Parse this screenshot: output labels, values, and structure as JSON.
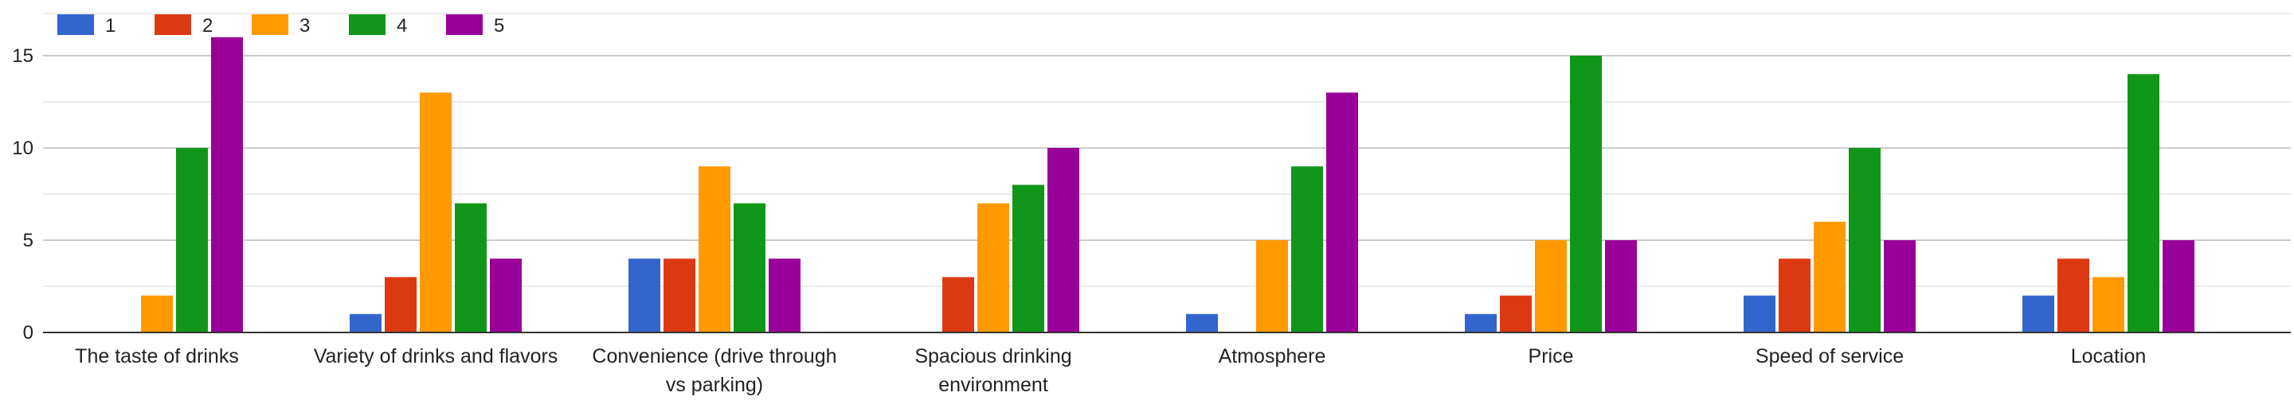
{
  "chart_data": {
    "type": "bar",
    "title": "",
    "xlabel": "",
    "ylabel": "",
    "ylim": [
      0,
      17
    ],
    "yticks": [
      0,
      5,
      10,
      15
    ],
    "grid": true,
    "legend_position": "top-left",
    "categories": [
      [
        "The taste of drinks"
      ],
      [
        "Variety of drinks and flavors"
      ],
      [
        "Convenience (drive through",
        "vs parking)"
      ],
      [
        "Spacious drinking",
        "environment"
      ],
      [
        "Atmosphere"
      ],
      [
        "Price"
      ],
      [
        "Speed of service"
      ],
      [
        "Location"
      ]
    ],
    "series": [
      {
        "name": "1",
        "color": "#3366cc",
        "values": [
          0,
          1,
          4,
          0,
          1,
          1,
          2,
          2
        ]
      },
      {
        "name": "2",
        "color": "#dc3912",
        "values": [
          0,
          3,
          4,
          3,
          0,
          2,
          4,
          4
        ]
      },
      {
        "name": "3",
        "color": "#ff9900",
        "values": [
          2,
          13,
          9,
          7,
          5,
          5,
          6,
          3
        ]
      },
      {
        "name": "4",
        "color": "#109618",
        "values": [
          10,
          7,
          7,
          8,
          9,
          15,
          10,
          14
        ]
      },
      {
        "name": "5",
        "color": "#990099",
        "values": [
          16,
          4,
          4,
          10,
          13,
          5,
          5,
          5
        ]
      }
    ]
  }
}
